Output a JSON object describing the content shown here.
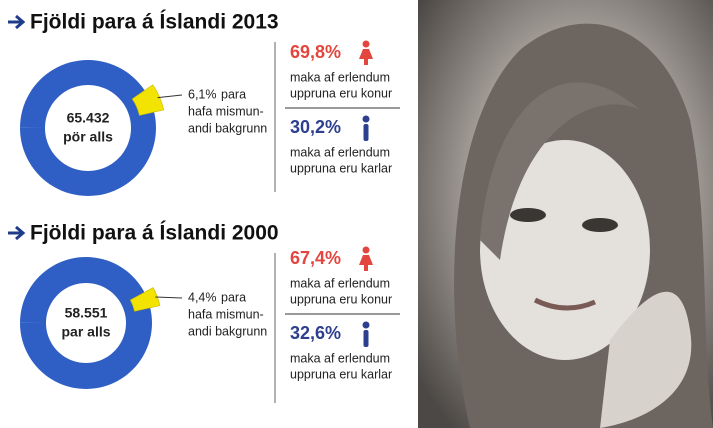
{
  "chart_data": [
    {
      "type": "pie",
      "title": "Fjöldi para á Íslandi 2013",
      "center_lines": [
        "65.432",
        "pör alls"
      ],
      "categories": [
        "para"
      ],
      "values": [
        6.1
      ],
      "value_labels": [
        "6,1%"
      ],
      "color": "#f3e300",
      "ring_color": "#2f5fc4",
      "note_lines": [
        "para",
        "hafa mismun-",
        "andi bakgrunn"
      ],
      "breakdown": [
        {
          "value": 69.8,
          "value_label": "69,8%",
          "color": "#e2463e",
          "icon": "female",
          "lines": [
            "maka af erlendum",
            "uppruna eru konur"
          ]
        },
        {
          "value": 30.2,
          "value_label": "30,2%",
          "color": "#2d3f8f",
          "icon": "male",
          "lines": [
            "maka af erlendum",
            "uppruna eru karlar"
          ]
        }
      ]
    },
    {
      "type": "pie",
      "title": "Fjöldi para á Íslandi 2000",
      "center_lines": [
        "58.551",
        "par alls"
      ],
      "categories": [
        "para"
      ],
      "values": [
        4.4
      ],
      "value_labels": [
        "4,4%"
      ],
      "color": "#f3e300",
      "ring_color": "#2f5fc4",
      "note_lines": [
        "para",
        "hafa mismun-",
        "andi bakgrunn"
      ],
      "breakdown": [
        {
          "value": 67.4,
          "value_label": "67,4%",
          "color": "#e2463e",
          "icon": "female",
          "lines": [
            "maka af erlendum",
            "uppruna eru konur"
          ]
        },
        {
          "value": 32.6,
          "value_label": "32,6%",
          "color": "#2d3f8f",
          "icon": "male",
          "lines": [
            "maka af erlendum",
            "uppruna eru karlar"
          ]
        }
      ]
    }
  ]
}
